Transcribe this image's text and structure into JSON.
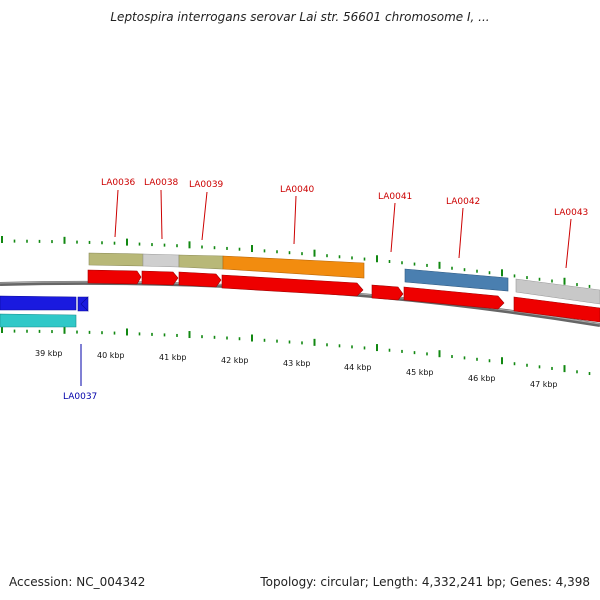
{
  "title": "Leptospira interrogans serovar Lai str. 56601 chromosome I, ...",
  "accession": "Accession: NC_004342",
  "info": "Topology: circular; Length: 4,332,241 bp; Genes: 4,398",
  "colors": {
    "forward_cds": "#ee0000",
    "reverse_cds": "#1a1adf",
    "label_forward": "#cc0000",
    "label_reverse": "#0000aa",
    "tick": "#118811",
    "backbone": "#777777",
    "olive": "#b8b878",
    "gray": "#c8c8c8",
    "orange": "#f28c0f",
    "steelblue": "#4a7fb0",
    "cyan": "#30c8c8"
  },
  "genes": [
    {
      "name": "LA0036",
      "strand": "forward"
    },
    {
      "name": "LA0037",
      "strand": "reverse"
    },
    {
      "name": "LA0038",
      "strand": "forward"
    },
    {
      "name": "LA0039",
      "strand": "forward"
    },
    {
      "name": "LA0040",
      "strand": "forward"
    },
    {
      "name": "LA0041",
      "strand": "forward"
    },
    {
      "name": "LA0042",
      "strand": "forward"
    },
    {
      "name": "LA0043",
      "strand": "forward"
    }
  ],
  "kbp_labels": [
    "39 kbp",
    "40 kbp",
    "41 kbp",
    "42 kbp",
    "43 kbp",
    "44 kbp",
    "45 kbp",
    "46 kbp",
    "47 kbp"
  ]
}
